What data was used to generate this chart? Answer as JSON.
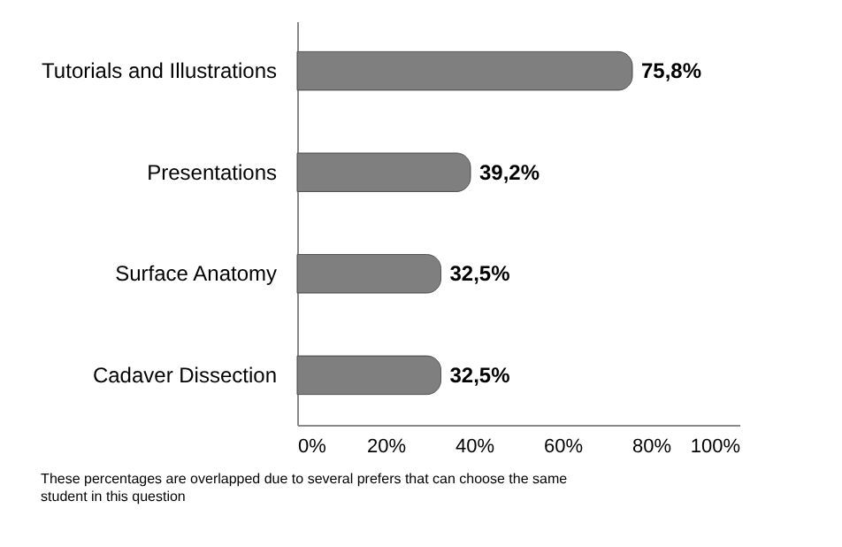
{
  "chart_data": {
    "type": "bar",
    "orientation": "horizontal",
    "categories": [
      "Tutorials and Illustrations",
      "Presentations",
      "Surface Anatomy",
      "Cadaver Dissection"
    ],
    "values": [
      75.8,
      39.2,
      32.5,
      32.5
    ],
    "value_labels": [
      "75,8%",
      "39,2%",
      "32,5%",
      "32,5%"
    ],
    "color": "#7f7f7f",
    "xlim": [
      0,
      100
    ],
    "xticks": [
      {
        "value": 0,
        "label": "0%"
      },
      {
        "value": 20,
        "label": "20%"
      },
      {
        "value": 40,
        "label": "40%"
      },
      {
        "value": 60,
        "label": "60%"
      },
      {
        "value": 80,
        "label": "80%"
      },
      {
        "value": 100,
        "label": "100%"
      }
    ],
    "grid": false,
    "annotations": [
      "These percentages are  overlapped due to several prefers  that can choose  the same student in this question"
    ]
  }
}
